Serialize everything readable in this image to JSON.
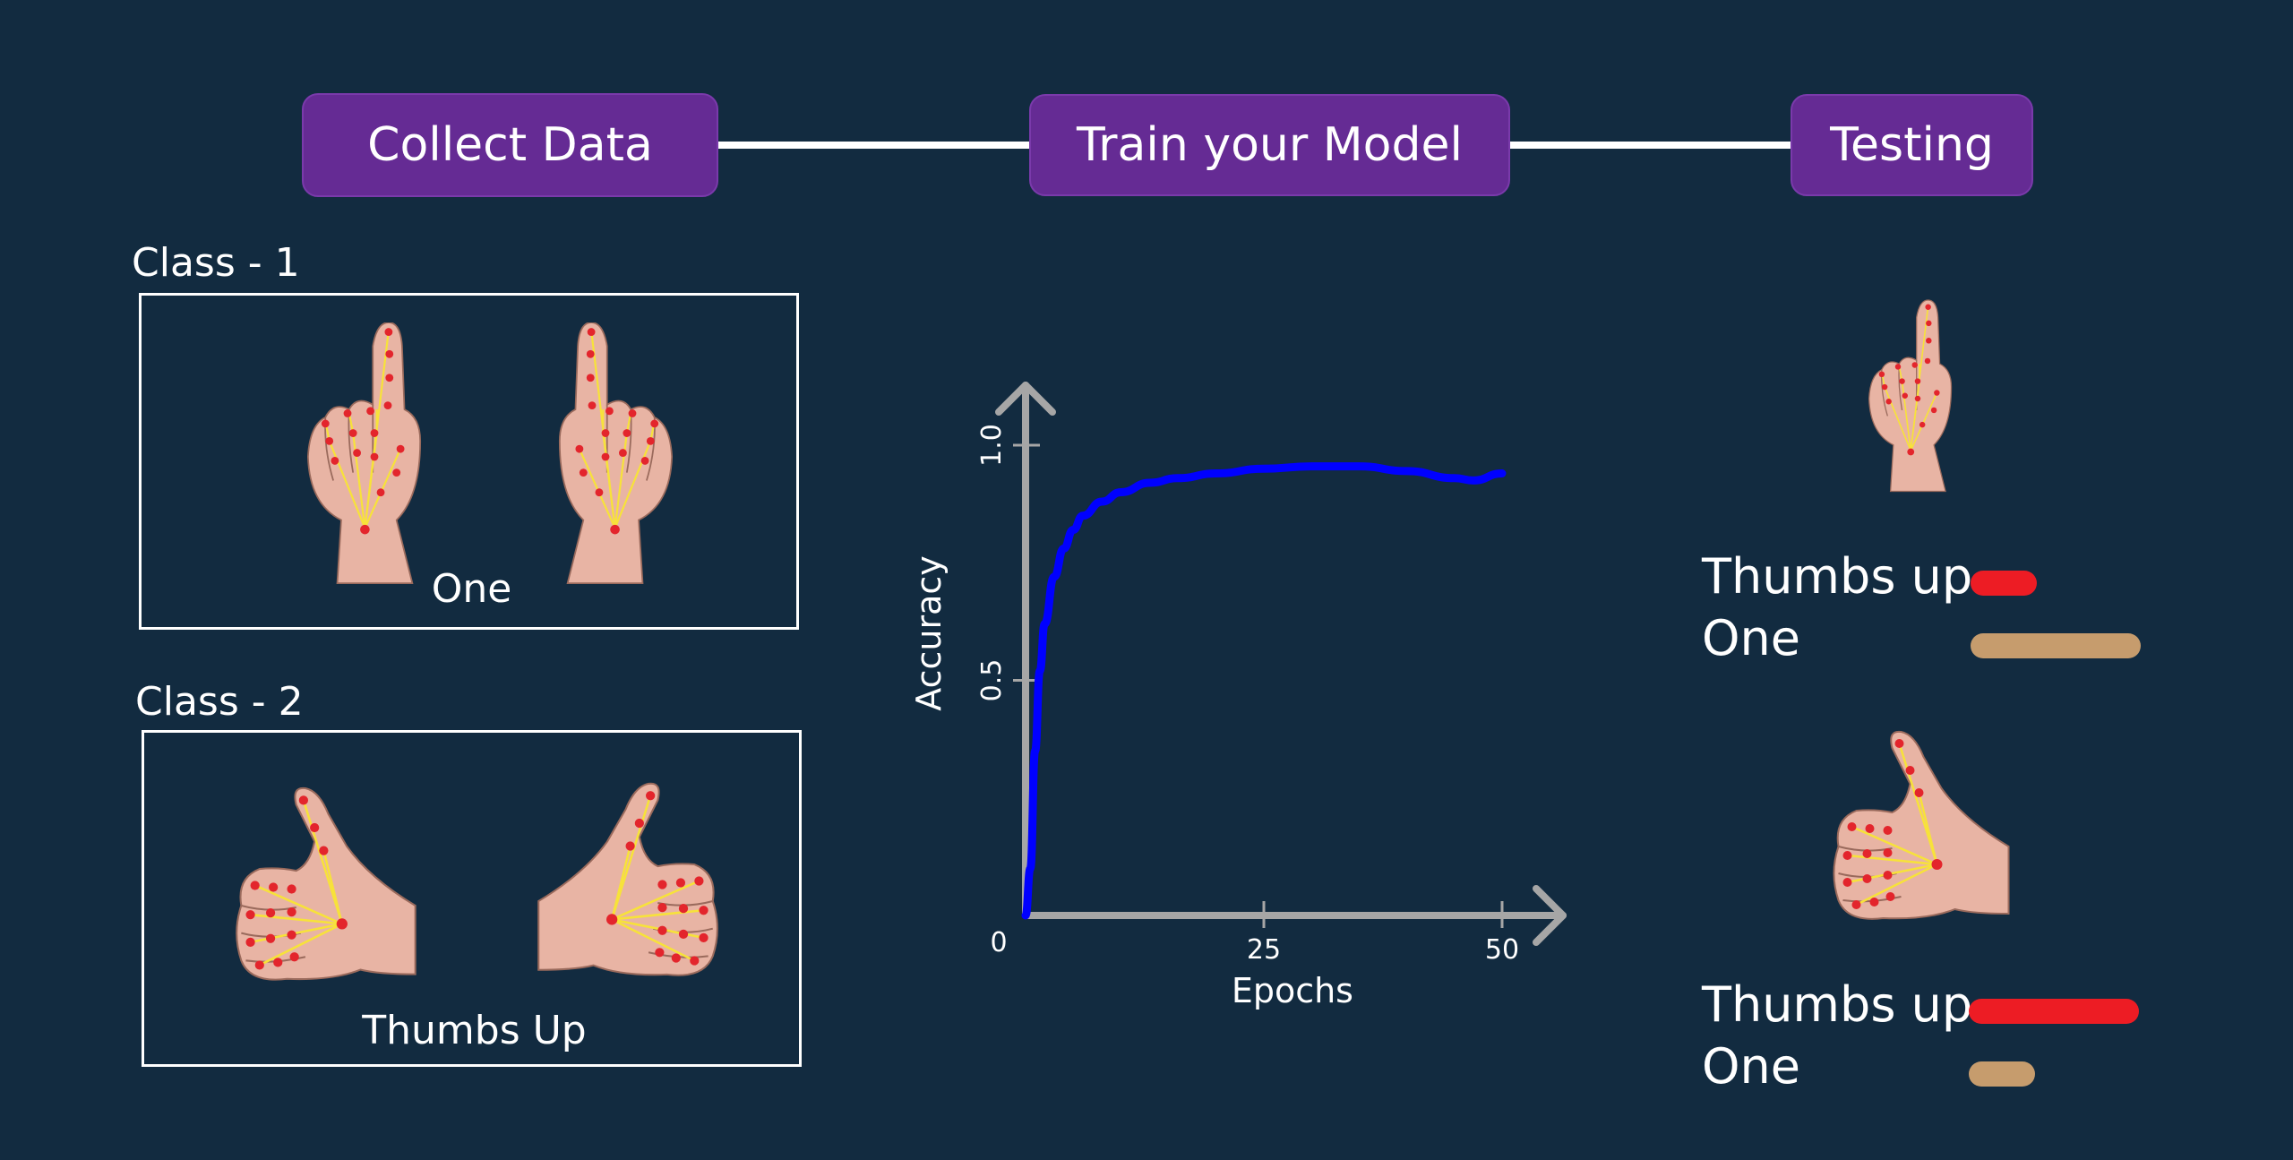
{
  "pipeline": {
    "steps": [
      "Collect Data",
      "Train your Model",
      "Testing"
    ]
  },
  "classes": [
    {
      "label": "Class - 1",
      "caption": "One"
    },
    {
      "label": "Class - 2",
      "caption": "Thumbs Up"
    }
  ],
  "chart_data": {
    "type": "line",
    "xlabel": "Epochs",
    "ylabel": "Accuracy",
    "xticks": [
      "25",
      "50"
    ],
    "yticks": [
      "0.5",
      "1.0"
    ],
    "origin_label": "0",
    "xlim": [
      0,
      50
    ],
    "ylim": [
      0,
      1.0
    ],
    "series": [
      {
        "color": "#0000ff",
        "x": [
          0,
          0.5,
          1,
          1.5,
          2,
          3,
          4,
          5,
          6,
          8,
          10,
          13,
          16,
          20,
          25,
          30,
          35,
          40,
          45,
          47,
          50
        ],
        "y": [
          0,
          0.1,
          0.35,
          0.52,
          0.62,
          0.72,
          0.78,
          0.82,
          0.85,
          0.88,
          0.9,
          0.92,
          0.93,
          0.94,
          0.95,
          0.955,
          0.955,
          0.945,
          0.93,
          0.925,
          0.94
        ]
      }
    ]
  },
  "testing": [
    {
      "gesture": "one",
      "predictions": [
        {
          "label": "Thumbs up",
          "value": 0.28,
          "color": "#ed1c24"
        },
        {
          "label": "One",
          "value": 0.72,
          "color": "#c69c6d"
        }
      ]
    },
    {
      "gesture": "thumbs-up",
      "predictions": [
        {
          "label": "Thumbs up",
          "value": 0.72,
          "color": "#ed1c24"
        },
        {
          "label": "One",
          "value": 0.28,
          "color": "#c69c6d"
        }
      ]
    }
  ]
}
